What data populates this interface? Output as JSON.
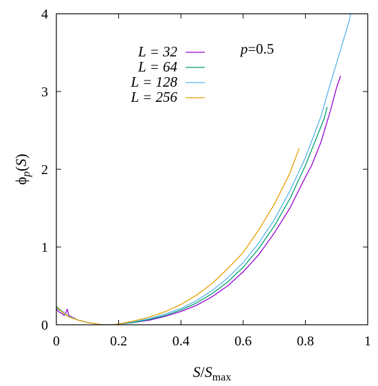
{
  "chart_data": {
    "type": "line",
    "xlabel": {
      "main": "S",
      "sep": "/",
      "var": "S",
      "sub": "max"
    },
    "ylabel": {
      "phi": "ϕ",
      "sub": "p",
      "arg": "(S)"
    },
    "xlim": [
      0,
      1
    ],
    "ylim": [
      0,
      4
    ],
    "xticks": [
      0,
      0.2,
      0.4,
      0.6,
      0.8,
      1
    ],
    "xtick_labels": [
      "0",
      "0.2",
      "0.4",
      "0.6",
      "0.8",
      "1"
    ],
    "yticks": [
      0,
      1,
      2,
      3,
      4
    ],
    "ytick_labels": [
      "0",
      "1",
      "2",
      "3",
      "4"
    ],
    "grid": false,
    "legend_position": "top-left",
    "annotation": {
      "var": "p",
      "rest": "=0.5"
    },
    "series": [
      {
        "name": "L = 32",
        "legend": {
          "var": "L",
          "eq": " = ",
          "val": "32"
        },
        "color": "#9400d3",
        "x": [
          0.0,
          0.01,
          0.02,
          0.025,
          0.03,
          0.035,
          0.04,
          0.05,
          0.07,
          0.1,
          0.13,
          0.15,
          0.18,
          0.2,
          0.25,
          0.3,
          0.35,
          0.4,
          0.45,
          0.5,
          0.55,
          0.6,
          0.65,
          0.7,
          0.75,
          0.8,
          0.82,
          0.85,
          0.88,
          0.9,
          0.913
        ],
        "y": [
          0.2,
          0.16,
          0.14,
          0.12,
          0.15,
          0.2,
          0.12,
          0.1,
          0.06,
          0.03,
          0.01,
          0.0,
          0.0,
          0.01,
          0.03,
          0.06,
          0.11,
          0.17,
          0.25,
          0.36,
          0.5,
          0.68,
          0.9,
          1.18,
          1.5,
          1.9,
          2.05,
          2.35,
          2.75,
          3.05,
          3.2
        ]
      },
      {
        "name": "L = 64",
        "legend": {
          "var": "L",
          "eq": " = ",
          "val": "64"
        },
        "color": "#009e73",
        "x": [
          0.0,
          0.02,
          0.04,
          0.07,
          0.1,
          0.13,
          0.15,
          0.18,
          0.2,
          0.25,
          0.3,
          0.35,
          0.4,
          0.45,
          0.5,
          0.55,
          0.6,
          0.65,
          0.7,
          0.75,
          0.8,
          0.83,
          0.86,
          0.87
        ],
        "y": [
          0.22,
          0.16,
          0.11,
          0.06,
          0.03,
          0.01,
          0.0,
          0.0,
          0.01,
          0.03,
          0.07,
          0.12,
          0.19,
          0.28,
          0.4,
          0.55,
          0.74,
          0.98,
          1.27,
          1.62,
          2.05,
          2.35,
          2.65,
          2.8
        ]
      },
      {
        "name": "L = 128",
        "legend": {
          "var": "L",
          "eq": " = ",
          "val": "128"
        },
        "color": "#56b4e9",
        "x": [
          0.0,
          0.02,
          0.04,
          0.07,
          0.1,
          0.13,
          0.15,
          0.18,
          0.2,
          0.25,
          0.3,
          0.35,
          0.4,
          0.45,
          0.5,
          0.55,
          0.6,
          0.65,
          0.7,
          0.75,
          0.8,
          0.85,
          0.88,
          0.91,
          0.94,
          0.945
        ],
        "y": [
          0.24,
          0.17,
          0.11,
          0.06,
          0.03,
          0.01,
          0.0,
          0.0,
          0.01,
          0.04,
          0.08,
          0.14,
          0.21,
          0.31,
          0.44,
          0.6,
          0.8,
          1.05,
          1.35,
          1.72,
          2.15,
          2.68,
          3.1,
          3.5,
          3.9,
          4.0
        ]
      },
      {
        "name": "L = 256",
        "legend": {
          "var": "L",
          "eq": " = ",
          "val": "256"
        },
        "color": "#e69f00",
        "x": [
          0.0,
          0.02,
          0.04,
          0.07,
          0.1,
          0.13,
          0.15,
          0.18,
          0.2,
          0.25,
          0.3,
          0.35,
          0.4,
          0.45,
          0.5,
          0.55,
          0.6,
          0.65,
          0.7,
          0.75,
          0.78
        ],
        "y": [
          0.23,
          0.16,
          0.1,
          0.06,
          0.03,
          0.01,
          0.0,
          0.0,
          0.01,
          0.05,
          0.1,
          0.17,
          0.26,
          0.38,
          0.53,
          0.72,
          0.93,
          1.22,
          1.55,
          1.95,
          2.27
        ]
      }
    ]
  }
}
